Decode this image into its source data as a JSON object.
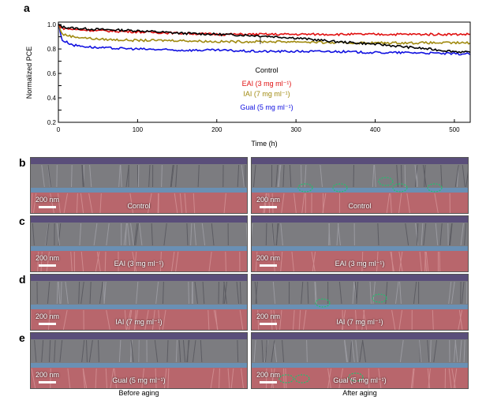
{
  "panels": {
    "a": "a",
    "b": "b",
    "c": "c",
    "d": "d",
    "e": "e"
  },
  "chart_data": {
    "type": "line",
    "xlabel": "Time (h)",
    "ylabel": "Normalized PCE",
    "xlim": [
      0,
      520
    ],
    "ylim": [
      0.2,
      1.02
    ],
    "xticks": [
      0,
      100,
      200,
      300,
      400,
      500
    ],
    "yticks": [
      0.2,
      0.3,
      0.4,
      0.5,
      0.6,
      0.7,
      0.8,
      0.9,
      1.0
    ],
    "ytick_labels": [
      "0.2",
      "",
      "0.4",
      "",
      "0.6",
      "",
      "0.8",
      "",
      "1.0"
    ],
    "grid": false,
    "legend_position": "center",
    "series": [
      {
        "name": "Control",
        "color": "#000000",
        "x": [
          0,
          5,
          20,
          50,
          100,
          150,
          200,
          250,
          300,
          350,
          400,
          450,
          500,
          520
        ],
        "y": [
          1.0,
          0.98,
          0.97,
          0.96,
          0.95,
          0.93,
          0.92,
          0.91,
          0.89,
          0.86,
          0.84,
          0.81,
          0.78,
          0.77
        ]
      },
      {
        "name": "EAI (3 mg ml⁻¹)",
        "color": "#e01010",
        "x": [
          0,
          5,
          20,
          50,
          100,
          150,
          200,
          250,
          300,
          350,
          400,
          450,
          500,
          520
        ],
        "y": [
          1.0,
          0.97,
          0.96,
          0.95,
          0.94,
          0.93,
          0.92,
          0.92,
          0.92,
          0.92,
          0.92,
          0.92,
          0.92,
          0.92
        ]
      },
      {
        "name": "IAI (7 mg ml⁻¹)",
        "color": "#a08a10",
        "x": [
          0,
          5,
          20,
          50,
          100,
          150,
          200,
          250,
          300,
          350,
          400,
          450,
          500,
          520
        ],
        "y": [
          1.0,
          0.92,
          0.9,
          0.88,
          0.87,
          0.87,
          0.86,
          0.86,
          0.86,
          0.85,
          0.85,
          0.85,
          0.85,
          0.85
        ]
      },
      {
        "name": "Gual (5 mg ml⁻¹)",
        "color": "#1010e0",
        "x": [
          0,
          5,
          20,
          50,
          100,
          150,
          200,
          250,
          300,
          350,
          400,
          450,
          500,
          520
        ],
        "y": [
          1.0,
          0.87,
          0.83,
          0.81,
          0.8,
          0.79,
          0.79,
          0.78,
          0.78,
          0.78,
          0.77,
          0.77,
          0.76,
          0.76
        ]
      }
    ]
  },
  "sem": {
    "scale": "200 nm",
    "before": [
      {
        "label": "Control"
      },
      {
        "label": "EAI (3 mg ml⁻¹)"
      },
      {
        "label": "IAI (7 mg ml⁻¹)"
      },
      {
        "label": "Gual (5 mg ml⁻¹)"
      }
    ],
    "after": [
      {
        "label": "Control"
      },
      {
        "label": "EAI (3 mg ml⁻¹)"
      },
      {
        "label": "IAI (7 mg ml⁻¹)"
      },
      {
        "label": "Gual (5 mg ml⁻¹)"
      }
    ],
    "col_before": "Before aging",
    "col_after": "After aging"
  }
}
